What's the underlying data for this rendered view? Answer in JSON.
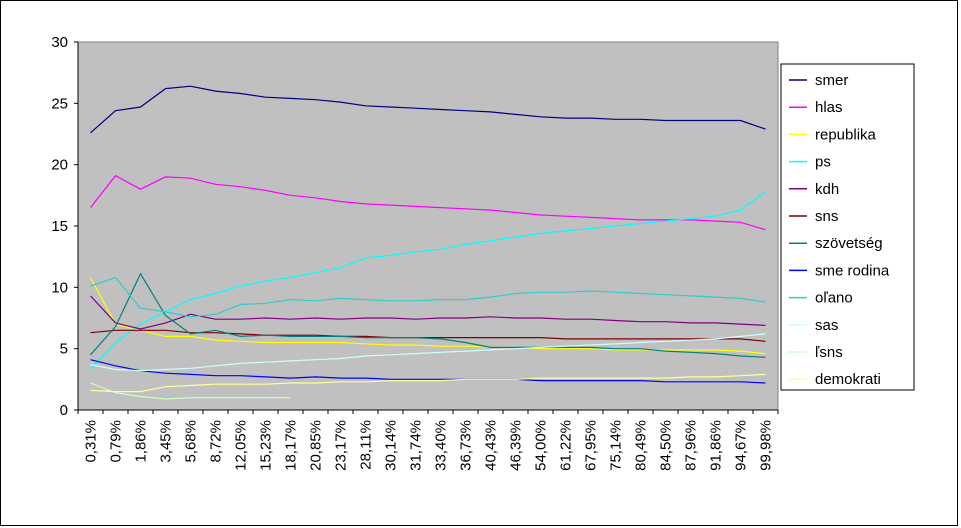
{
  "chart_data": {
    "type": "line",
    "ylim": [
      0,
      30
    ],
    "yticks": [
      "0",
      "5",
      "10",
      "15",
      "20",
      "25",
      "30"
    ],
    "grid": false,
    "plot_background": "#c0c0c0",
    "legend_position": "right",
    "x_labels": [
      "0,31%",
      "0,79%",
      "1,86%",
      "3,45%",
      "5,68%",
      "8,72%",
      "12,05%",
      "15,23%",
      "18,17%",
      "20,85%",
      "23,17%",
      "28,11%",
      "30,14%",
      "31,74%",
      "33,40%",
      "36,73%",
      "40,43%",
      "46,39%",
      "54,00%",
      "61,22%",
      "67,95%",
      "75,14%",
      "80,49%",
      "84,50%",
      "87,96%",
      "91,86%",
      "94,67%",
      "99,98%"
    ],
    "series": [
      {
        "name": "smer",
        "color": "#000080",
        "values": [
          22.6,
          24.4,
          24.7,
          26.2,
          26.4,
          26.0,
          25.8,
          25.5,
          25.4,
          25.3,
          25.1,
          24.8,
          24.7,
          24.6,
          24.5,
          24.4,
          24.3,
          24.1,
          23.9,
          23.8,
          23.8,
          23.7,
          23.7,
          23.6,
          23.6,
          23.6,
          23.6,
          22.9
        ]
      },
      {
        "name": "hlas",
        "color": "#ff00ff",
        "values": [
          16.5,
          19.1,
          18.0,
          19.0,
          18.9,
          18.4,
          18.2,
          17.9,
          17.5,
          17.3,
          17.0,
          16.8,
          16.7,
          16.6,
          16.5,
          16.4,
          16.3,
          16.1,
          15.9,
          15.8,
          15.7,
          15.6,
          15.5,
          15.5,
          15.5,
          15.4,
          15.3,
          14.7
        ]
      },
      {
        "name": "republika",
        "color": "#ffff00",
        "values": [
          10.8,
          7.0,
          6.5,
          6.0,
          6.0,
          5.7,
          5.6,
          5.5,
          5.5,
          5.5,
          5.5,
          5.4,
          5.3,
          5.3,
          5.2,
          5.2,
          5.1,
          5.1,
          5.0,
          5.0,
          5.0,
          4.9,
          4.9,
          4.9,
          4.9,
          4.9,
          4.8,
          4.6
        ]
      },
      {
        "name": "ps",
        "color": "#00ffff",
        "values": [
          3.3,
          5.5,
          7.0,
          8.0,
          9.0,
          9.5,
          10.1,
          10.5,
          10.8,
          11.2,
          11.6,
          12.4,
          12.6,
          12.9,
          13.1,
          13.5,
          13.8,
          14.1,
          14.4,
          14.6,
          14.8,
          15.0,
          15.2,
          15.4,
          15.6,
          15.8,
          16.3,
          17.8
        ]
      },
      {
        "name": "kdh",
        "color": "#800080",
        "values": [
          9.3,
          7.1,
          6.6,
          7.1,
          7.8,
          7.4,
          7.4,
          7.5,
          7.4,
          7.5,
          7.4,
          7.5,
          7.5,
          7.4,
          7.5,
          7.5,
          7.6,
          7.5,
          7.5,
          7.4,
          7.4,
          7.3,
          7.2,
          7.2,
          7.1,
          7.1,
          7.0,
          6.9
        ]
      },
      {
        "name": "sns",
        "color": "#800000",
        "values": [
          6.3,
          6.5,
          6.5,
          6.5,
          6.3,
          6.3,
          6.2,
          6.1,
          6.1,
          6.1,
          6.0,
          6.0,
          5.9,
          5.9,
          5.9,
          5.9,
          5.9,
          5.9,
          5.9,
          5.8,
          5.8,
          5.8,
          5.8,
          5.8,
          5.8,
          5.8,
          5.8,
          5.6
        ]
      },
      {
        "name": "szövetség",
        "color": "#008080",
        "values": [
          4.5,
          6.8,
          11.1,
          7.7,
          6.2,
          6.5,
          6.0,
          6.1,
          6.0,
          6.0,
          6.0,
          5.9,
          5.9,
          5.9,
          5.8,
          5.5,
          5.1,
          5.1,
          5.1,
          5.1,
          5.1,
          5.0,
          5.0,
          4.8,
          4.7,
          4.6,
          4.4,
          4.3
        ]
      },
      {
        "name": "sme rodina",
        "color": "#0000ff",
        "values": [
          4.1,
          3.6,
          3.2,
          3.0,
          2.9,
          2.8,
          2.8,
          2.7,
          2.6,
          2.7,
          2.6,
          2.6,
          2.5,
          2.5,
          2.5,
          2.5,
          2.5,
          2.5,
          2.4,
          2.4,
          2.4,
          2.4,
          2.4,
          2.3,
          2.3,
          2.3,
          2.3,
          2.2
        ]
      },
      {
        "name": "oľano",
        "color": "#33cccc",
        "values": [
          10.1,
          10.8,
          8.3,
          8.0,
          7.6,
          7.8,
          8.6,
          8.7,
          9.0,
          8.9,
          9.1,
          9.0,
          8.9,
          8.9,
          9.0,
          9.0,
          9.2,
          9.5,
          9.6,
          9.6,
          9.7,
          9.6,
          9.5,
          9.4,
          9.3,
          9.2,
          9.1,
          8.8
        ]
      },
      {
        "name": "sas",
        "color": "#ccffff",
        "values": [
          3.7,
          3.3,
          3.2,
          3.3,
          3.4,
          3.6,
          3.8,
          3.9,
          4.0,
          4.1,
          4.2,
          4.4,
          4.5,
          4.6,
          4.7,
          4.8,
          4.9,
          5.0,
          5.1,
          5.2,
          5.3,
          5.4,
          5.5,
          5.6,
          5.7,
          5.8,
          6.0,
          6.2
        ]
      },
      {
        "name": "ľsns",
        "color": "#ccffcc",
        "values": [
          2.2,
          1.4,
          1.1,
          0.9,
          1.0,
          1.0,
          1.0,
          1.0,
          1.0,
          null,
          null,
          null,
          null,
          null,
          null,
          null,
          null,
          null,
          null,
          null,
          null,
          null,
          null,
          null,
          null,
          null,
          null,
          null
        ]
      },
      {
        "name": "demokrati",
        "color": "#ffff99",
        "values": [
          1.6,
          1.5,
          1.5,
          1.9,
          2.0,
          2.1,
          2.1,
          2.1,
          2.2,
          2.2,
          2.3,
          2.3,
          2.4,
          2.4,
          2.4,
          2.5,
          2.5,
          2.5,
          2.6,
          2.6,
          2.6,
          2.6,
          2.6,
          2.6,
          2.7,
          2.7,
          2.8,
          2.9
        ]
      }
    ]
  }
}
